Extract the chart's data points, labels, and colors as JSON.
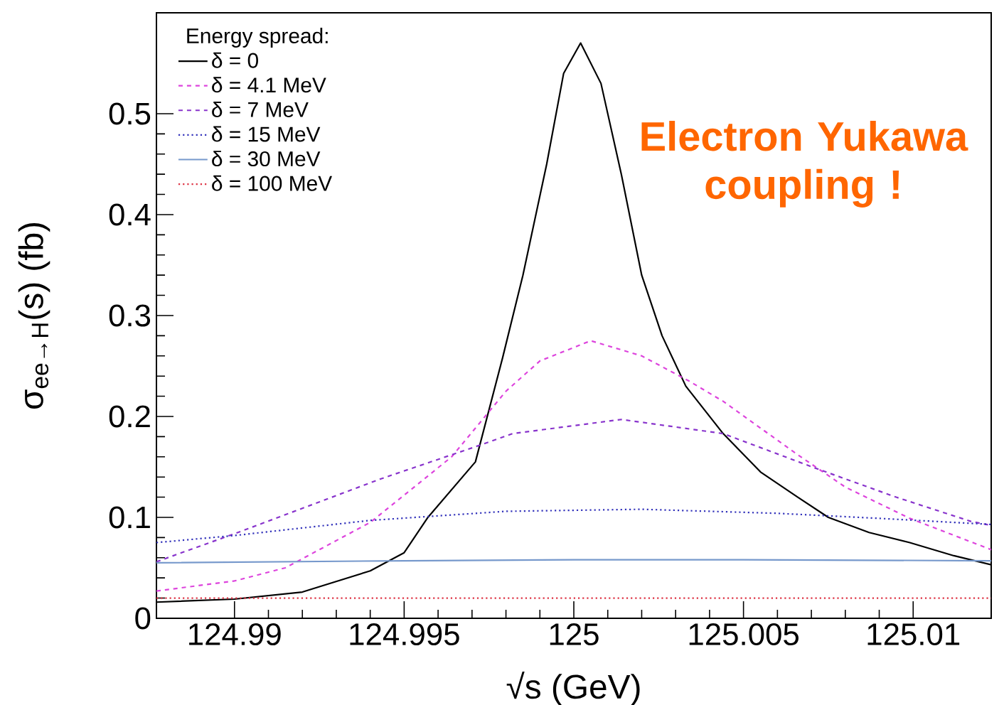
{
  "chart_data": {
    "type": "line",
    "xlabel": "√s (GeV)",
    "ylabel": "σ$_{ee→H}$(s) (fb)",
    "legend_title": "Energy spread:",
    "legend": "top left",
    "annotations": [
      "Electron Yukawa coupling !"
    ],
    "xlim": [
      124.9877,
      125.0123
    ],
    "ylim": [
      0,
      0.6
    ],
    "xticks": [
      124.99,
      124.995,
      125,
      125.005,
      125.01
    ],
    "yticks": [
      0,
      0.1,
      0.2,
      0.3,
      0.4,
      0.5
    ],
    "series": [
      {
        "name": "δ = 0",
        "color": "#000000",
        "line_style": "solid",
        "x": [
          124.9877,
          124.99,
          124.992,
          124.994,
          124.995,
          124.9957,
          124.9971,
          124.9979,
          124.9985,
          124.9992,
          124.9997,
          125.0002,
          125.0008,
          125.0014,
          125.002,
          125.0026,
          125.0033,
          125.0044,
          125.0055,
          125.0066,
          125.0075,
          125.0087,
          125.0099,
          125.0112,
          125.0123
        ],
        "values": [
          0.016,
          0.019,
          0.026,
          0.047,
          0.065,
          0.1,
          0.155,
          0.258,
          0.34,
          0.45,
          0.54,
          0.57,
          0.53,
          0.44,
          0.34,
          0.28,
          0.23,
          0.183,
          0.145,
          0.12,
          0.1,
          0.085,
          0.075,
          0.062,
          0.053
        ]
      },
      {
        "name": "δ = 4.1 MeV",
        "color": "#dd44dd",
        "line_style": "dashed",
        "x": [
          124.9877,
          124.99,
          124.9915,
          124.994,
          124.9964,
          124.998,
          124.999,
          125.0005,
          125.002,
          125.0034,
          125.0044,
          125.0066,
          125.008,
          125.0099,
          125.0123
        ],
        "values": [
          0.027,
          0.037,
          0.05,
          0.095,
          0.16,
          0.225,
          0.255,
          0.275,
          0.26,
          0.235,
          0.215,
          0.162,
          0.13,
          0.099,
          0.068
        ]
      },
      {
        "name": "δ = 7 MeV",
        "color": "#8833cc",
        "line_style": "dashed",
        "x": [
          124.9877,
          124.9901,
          124.9943,
          124.9971,
          124.9982,
          125.0014,
          125.0044,
          125.0071,
          125.0095,
          125.0117,
          125.0123
        ],
        "values": [
          0.056,
          0.085,
          0.138,
          0.17,
          0.183,
          0.197,
          0.183,
          0.149,
          0.12,
          0.096,
          0.092
        ]
      },
      {
        "name": "δ = 15 MeV",
        "color": "#3333bb",
        "line_style": "dotted",
        "x": [
          124.9877,
          124.99,
          124.994,
          124.998,
          125.002,
          125.006,
          125.009,
          125.0123
        ],
        "values": [
          0.075,
          0.082,
          0.097,
          0.106,
          0.108,
          0.104,
          0.099,
          0.093
        ]
      },
      {
        "name": "δ = 30 MeV",
        "color": "#7799cc",
        "line_style": "solid",
        "x": [
          124.9877,
          124.995,
          125.0,
          125.005,
          125.0123
        ],
        "values": [
          0.055,
          0.057,
          0.058,
          0.058,
          0.057
        ]
      },
      {
        "name": "δ = 100 MeV",
        "color": "#dd3344",
        "line_style": "dotted",
        "x": [
          124.9877,
          125.0,
          125.0123
        ],
        "values": [
          0.02,
          0.02,
          0.02
        ]
      }
    ]
  }
}
